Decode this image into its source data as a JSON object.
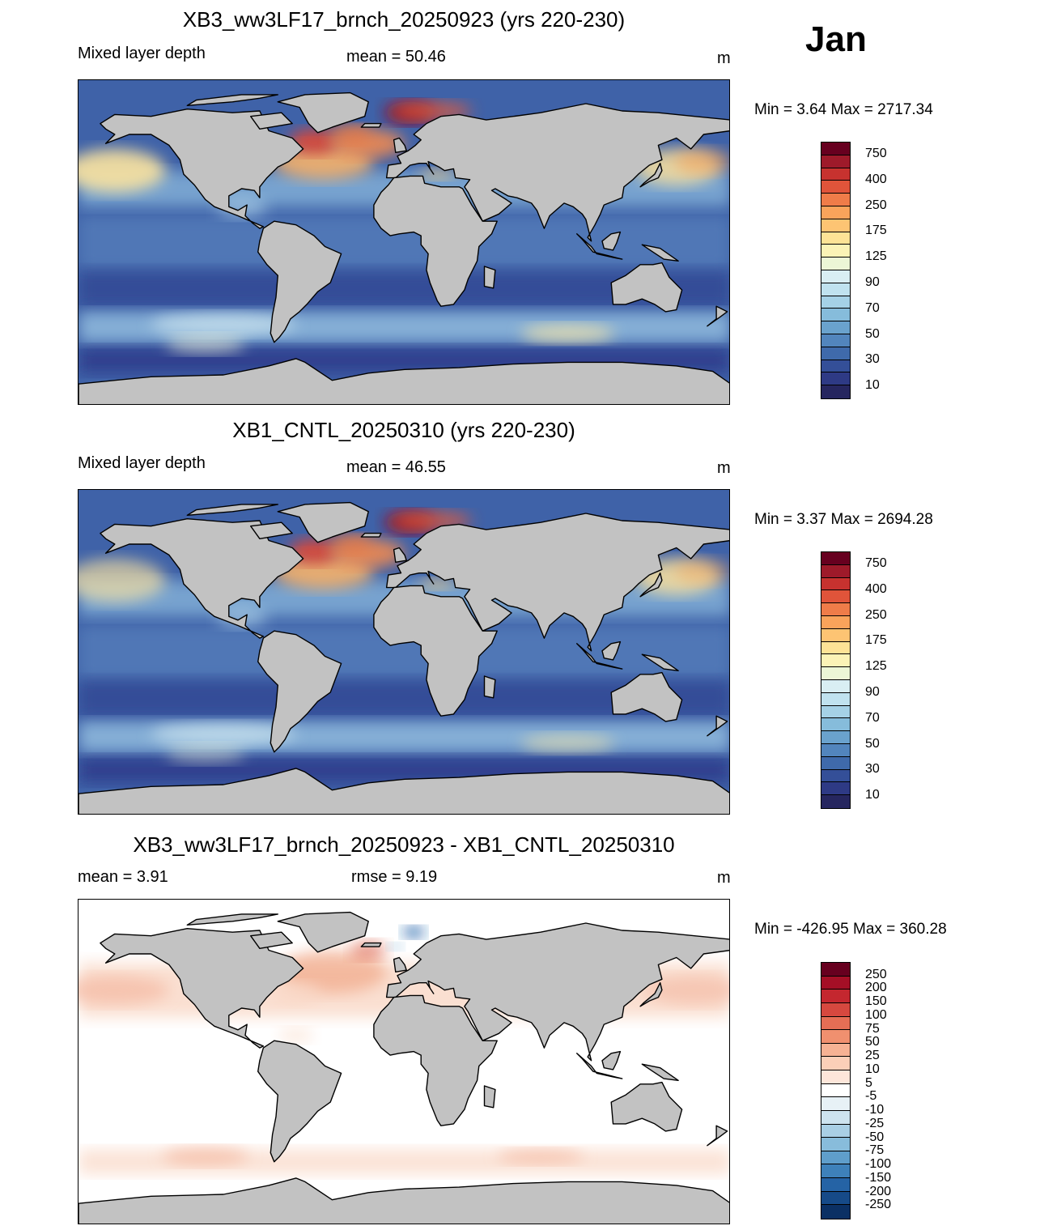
{
  "month": "Jan",
  "panels": [
    {
      "title": "XB3_ww3LF17_brnch_20250923 (yrs 220-230)",
      "left_label": "Mixed layer depth",
      "center_label": "mean =  50.46",
      "units": "m",
      "minmax": "Min =    3.64 Max = 2717.34",
      "palette": "mld",
      "mean_mld": 50.46
    },
    {
      "title": "XB1_CNTL_20250310 (yrs 220-230)",
      "left_label": "Mixed layer depth",
      "center_label": "mean =  46.55",
      "units": "m",
      "minmax": "Min =    3.37 Max = 2694.28",
      "palette": "mld",
      "mean_mld": 46.55
    },
    {
      "title": "XB3_ww3LF17_brnch_20250923 - XB1_CNTL_20250310",
      "left_label": "mean =   3.91",
      "center_label": "rmse =   9.19",
      "units": "m",
      "minmax": "Min = -426.95 Max = 360.28",
      "palette": "diff"
    }
  ],
  "colorbars": {
    "mld": {
      "labels": [
        "750",
        "400",
        "250",
        "175",
        "125",
        "90",
        "70",
        "50",
        "30",
        "10"
      ],
      "colors": [
        "#67001f",
        "#9e1a2a",
        "#c7322f",
        "#e0543a",
        "#ef7c49",
        "#f9a35b",
        "#fdc473",
        "#fde396",
        "#fbf3b6",
        "#ecf6d6",
        "#d9eef3",
        "#c0e2ef",
        "#a5d1e6",
        "#86bcdb",
        "#6aa2cd",
        "#5285bd",
        "#3f6aab",
        "#344f98",
        "#2e3a85",
        "#26265f"
      ]
    },
    "diff": {
      "labels": [
        "250",
        "200",
        "150",
        "100",
        "75",
        "50",
        "25",
        "10",
        "5",
        "-5",
        "-10",
        "-25",
        "-50",
        "-75",
        "-100",
        "-150",
        "-200",
        "-250"
      ],
      "colors": [
        "#67001f",
        "#a50f26",
        "#c4272f",
        "#d6483f",
        "#e56e55",
        "#f0906f",
        "#f6b294",
        "#fbcfb8",
        "#fde6da",
        "#ffffff",
        "#e7f1f6",
        "#cde3ef",
        "#a9cfe5",
        "#88bcdb",
        "#5f9ecb",
        "#3e81ba",
        "#2563a5",
        "#164a88",
        "#0b3064"
      ]
    }
  }
}
